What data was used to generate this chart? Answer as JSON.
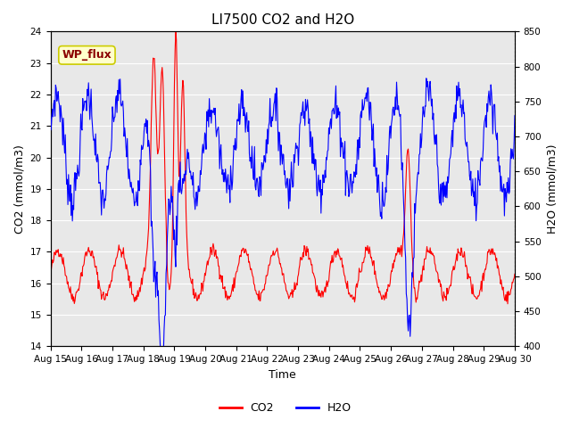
{
  "title": "LI7500 CO2 and H2O",
  "xlabel": "Time",
  "ylabel_left": "CO2 (mmol/m3)",
  "ylabel_right": "H2O (mmol/m3)",
  "co2_ylim": [
    14.0,
    24.0
  ],
  "h2o_ylim": [
    400,
    850
  ],
  "co2_yticks": [
    14.0,
    15.0,
    16.0,
    17.0,
    18.0,
    19.0,
    20.0,
    21.0,
    22.0,
    23.0,
    24.0
  ],
  "h2o_yticks": [
    400,
    450,
    500,
    550,
    600,
    650,
    700,
    750,
    800,
    850
  ],
  "xtick_labels": [
    "Aug 15",
    "Aug 16",
    "Aug 17",
    "Aug 18",
    "Aug 19",
    "Aug 20",
    "Aug 21",
    "Aug 22",
    "Aug 23",
    "Aug 24",
    "Aug 25",
    "Aug 26",
    "Aug 27",
    "Aug 28",
    "Aug 29",
    "Aug 30"
  ],
  "co2_color": "#FF0000",
  "h2o_color": "#0000FF",
  "background_color": "#E8E8E8",
  "annotation_text": "WP_flux",
  "annotation_bg": "#FFFFCC",
  "annotation_border": "#CCCC00",
  "grid_color": "#FFFFFF",
  "title_fontsize": 11,
  "label_fontsize": 9,
  "tick_fontsize": 7.5,
  "legend_fontsize": 9
}
